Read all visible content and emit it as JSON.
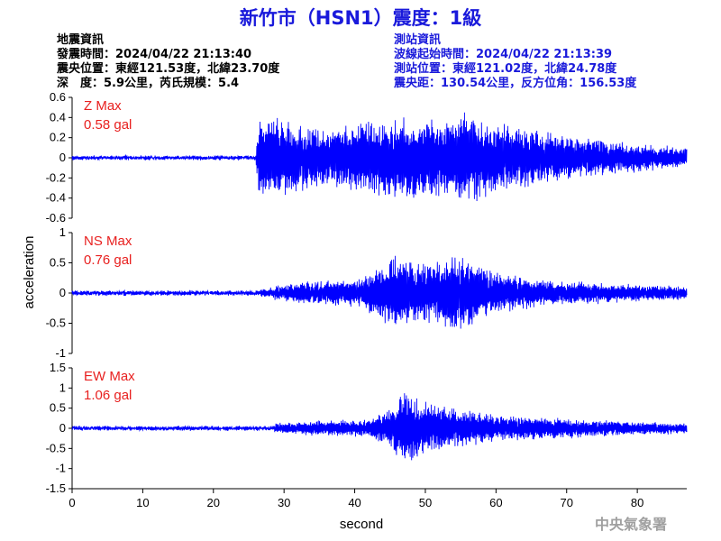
{
  "title": "新竹市（HSN1）震度：1級",
  "colors": {
    "title": "#1a1adb",
    "trace": "#0000ff",
    "max_label": "#e8201f",
    "info_left": "#000000",
    "info_right": "#1a1adb",
    "agency": "#a0a0a0"
  },
  "eq_info": {
    "heading": "地震資訊",
    "origin_time": "發震時間：2024/04/22 21:13:40",
    "epicenter": "震央位置：東經121.53度，北緯23.70度",
    "depth_magnitude": "深　度：5.9公里，芮氏規模：5.4"
  },
  "station_info": {
    "heading": "測站資訊",
    "wave_start": "波線起始時間：2024/04/22 21:13:39",
    "location": "測站位置：東經121.02度，北緯24.78度",
    "distance": "震央距：130.54公里，反方位角：156.53度"
  },
  "agency": "中央氣象署",
  "chart_data": {
    "type": "line",
    "xlabel": "second",
    "ylabel": "acceleration",
    "xlim": [
      0,
      87
    ],
    "xticks": [
      0,
      10,
      20,
      30,
      40,
      50,
      60,
      70,
      80
    ],
    "panels": [
      {
        "component": "Z",
        "max_label": "Z Max",
        "max_value": "0.58 gal",
        "ylim": [
          -0.6,
          0.6
        ],
        "yticks": [
          -0.6,
          -0.4,
          -0.2,
          0,
          0.2,
          0.4,
          0.6
        ],
        "ytick_labels": [
          "-0.6",
          "-0.4",
          "-0.2",
          "0",
          "0.2",
          "0.4",
          "0.6"
        ],
        "noise": 0.012,
        "envelope": [
          [
            0,
            0.015
          ],
          [
            26,
            0.015
          ],
          [
            26.5,
            0.48
          ],
          [
            29,
            0.42
          ],
          [
            33,
            0.32
          ],
          [
            36,
            0.3
          ],
          [
            42,
            0.36
          ],
          [
            45,
            0.42
          ],
          [
            50,
            0.38
          ],
          [
            56,
            0.48
          ],
          [
            60,
            0.36
          ],
          [
            65,
            0.3
          ],
          [
            70,
            0.22
          ],
          [
            80,
            0.14
          ],
          [
            87,
            0.1
          ]
        ]
      },
      {
        "component": "NS",
        "max_label": "NS Max",
        "max_value": "0.76 gal",
        "ylim": [
          -1,
          1
        ],
        "yticks": [
          -1,
          -0.5,
          0,
          0.5,
          1
        ],
        "ytick_labels": [
          "-1",
          "-0.5",
          "0",
          "0.5",
          "1"
        ],
        "noise": 0.02,
        "envelope": [
          [
            0,
            0.03
          ],
          [
            26,
            0.03
          ],
          [
            28,
            0.1
          ],
          [
            32,
            0.18
          ],
          [
            40,
            0.22
          ],
          [
            43,
            0.4
          ],
          [
            46,
            0.62
          ],
          [
            50,
            0.48
          ],
          [
            53,
            0.58
          ],
          [
            56,
            0.62
          ],
          [
            60,
            0.35
          ],
          [
            65,
            0.24
          ],
          [
            72,
            0.18
          ],
          [
            80,
            0.14
          ],
          [
            87,
            0.1
          ]
        ]
      },
      {
        "component": "EW",
        "max_label": "EW Max",
        "max_value": "1.06 gal",
        "ylim": [
          -1.5,
          1.5
        ],
        "yticks": [
          -1.5,
          -1,
          -0.5,
          0,
          0.5,
          1,
          1.5
        ],
        "ytick_labels": [
          "-1.5",
          "-1",
          "-0.5",
          "0",
          "0.5",
          "1",
          "1.5"
        ],
        "noise": 0.03,
        "envelope": [
          [
            0,
            0.04
          ],
          [
            28,
            0.04
          ],
          [
            29,
            0.12
          ],
          [
            35,
            0.18
          ],
          [
            42,
            0.2
          ],
          [
            45,
            0.5
          ],
          [
            47,
            0.9
          ],
          [
            49,
            0.75
          ],
          [
            52,
            0.55
          ],
          [
            56,
            0.45
          ],
          [
            60,
            0.32
          ],
          [
            70,
            0.25
          ],
          [
            80,
            0.15
          ],
          [
            87,
            0.12
          ]
        ]
      }
    ]
  }
}
